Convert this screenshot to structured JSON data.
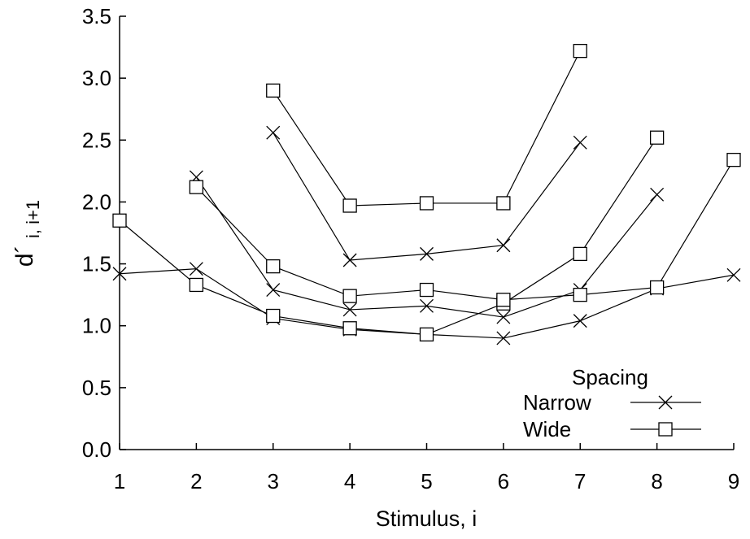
{
  "chart_data": {
    "type": "line",
    "xlabel": "Stimulus, i",
    "ylabel": "d´",
    "ylabel_subscript": "i, i+1",
    "xlim": [
      1,
      9
    ],
    "ylim": [
      0,
      3.5
    ],
    "x_ticks": [
      "1",
      "2",
      "3",
      "4",
      "5",
      "6",
      "7",
      "8",
      "9"
    ],
    "y_ticks": [
      "0.0",
      "0.5",
      "1.0",
      "1.5",
      "2.0",
      "2.5",
      "3.0",
      "3.5"
    ],
    "grid": false,
    "legend": {
      "title": "Spacing",
      "placement": "bottom-right",
      "entries": [
        {
          "label": "Narrow",
          "marker": "x"
        },
        {
          "label": "Wide",
          "marker": "square"
        }
      ]
    },
    "series": [
      {
        "spacing": "Narrow",
        "marker": "x",
        "points": [
          [
            1,
            1.42
          ],
          [
            2,
            1.46
          ],
          [
            3,
            1.06
          ],
          [
            4,
            0.97
          ],
          [
            5,
            0.93
          ],
          [
            6,
            0.9
          ],
          [
            7,
            1.04
          ],
          [
            8,
            1.3
          ],
          [
            9,
            1.41
          ]
        ]
      },
      {
        "spacing": "Narrow",
        "marker": "x",
        "points": [
          [
            2,
            2.2
          ],
          [
            3,
            1.29
          ],
          [
            4,
            1.13
          ],
          [
            5,
            1.16
          ],
          [
            6,
            1.07
          ],
          [
            7,
            1.29
          ],
          [
            8,
            2.06
          ]
        ]
      },
      {
        "spacing": "Narrow",
        "marker": "x",
        "points": [
          [
            3,
            2.56
          ],
          [
            4,
            1.53
          ],
          [
            5,
            1.58
          ],
          [
            6,
            1.65
          ],
          [
            7,
            2.48
          ]
        ]
      },
      {
        "spacing": "Wide",
        "marker": "square",
        "points": [
          [
            1,
            1.85
          ],
          [
            2,
            1.33
          ],
          [
            3,
            1.08
          ],
          [
            4,
            0.98
          ],
          [
            5,
            0.93
          ],
          [
            6,
            1.18
          ],
          [
            7,
            1.58
          ],
          [
            8,
            2.52
          ]
        ]
      },
      {
        "spacing": "Wide",
        "marker": "square",
        "points": [
          [
            2,
            2.12
          ],
          [
            3,
            1.48
          ],
          [
            4,
            1.24
          ],
          [
            5,
            1.29
          ],
          [
            6,
            1.21
          ],
          [
            7,
            1.25
          ],
          [
            8,
            1.31
          ],
          [
            9,
            2.34
          ]
        ]
      },
      {
        "spacing": "Wide",
        "marker": "square",
        "points": [
          [
            3,
            2.9
          ],
          [
            4,
            1.97
          ],
          [
            5,
            1.99
          ],
          [
            6,
            1.99
          ],
          [
            7,
            3.22
          ]
        ]
      }
    ]
  }
}
